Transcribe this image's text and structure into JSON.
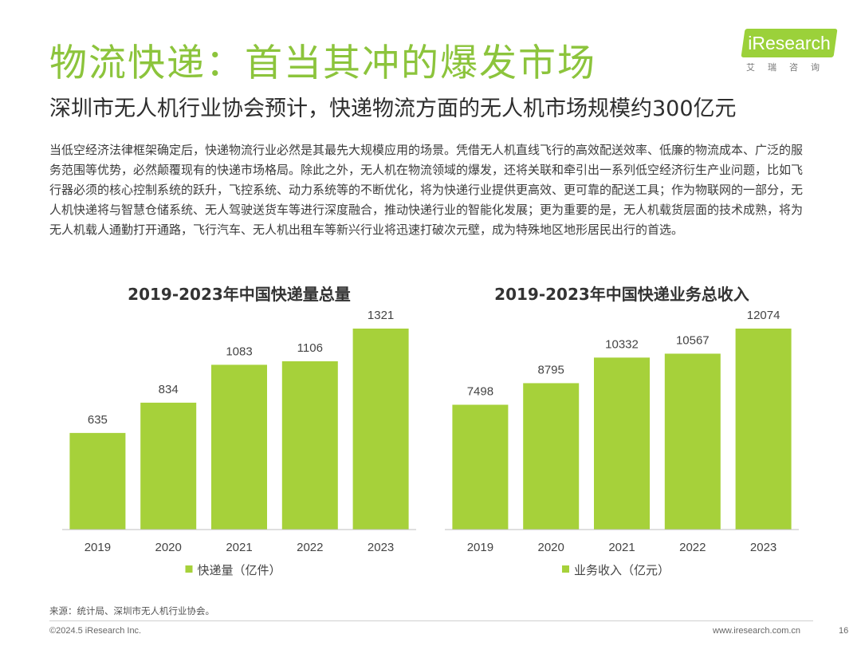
{
  "header": {
    "title": "物流快递：首当其冲的爆发市场",
    "subtitle": "深圳市无人机行业协会预计，快递物流方面的无人机市场规模约300亿元"
  },
  "logo": {
    "brand": "iResearch",
    "sub": "艾瑞咨询"
  },
  "body_text": "当低空经济法律框架确定后，快递物流行业必然是其最先大规模应用的场景。凭借无人机直线飞行的高效配送效率、低廉的物流成本、广泛的服务范围等优势，必然颠覆现有的快递市场格局。除此之外，无人机在物流领域的爆发，还将关联和牵引出一系列低空经济衍生产业问题，比如飞行器必须的核心控制系统的跃升，飞控系统、动力系统等的不断优化，将为快递行业提供更高效、更可靠的配送工具；作为物联网的一部分，无人机快递将与智慧仓储系统、无人驾驶送货车等进行深度融合，推动快递行业的智能化发展；更为重要的是，无人机载货层面的技术成熟，将为无人机载人通勤打开通路，飞行汽车、无人机出租车等新兴行业将迅速打破次元壁，成为特殊地区地形居民出行的首选。",
  "chart_data": [
    {
      "type": "bar",
      "title": "2019-2023年中国快递量总量",
      "categories": [
        "2019",
        "2020",
        "2021",
        "2022",
        "2023"
      ],
      "series": [
        {
          "name": "快递量（亿件）",
          "values": [
            635,
            834,
            1083,
            1106,
            1321
          ]
        }
      ],
      "ylim": [
        0,
        1321
      ],
      "color": "#a6d13a",
      "grid": false,
      "legend": "bottom"
    },
    {
      "type": "bar",
      "title": "2019-2023年中国快递业务总收入",
      "categories": [
        "2019",
        "2020",
        "2021",
        "2022",
        "2023"
      ],
      "series": [
        {
          "name": "业务收入（亿元）",
          "values": [
            7498,
            8795,
            10332,
            10567,
            12074
          ]
        }
      ],
      "ylim": [
        0,
        12074
      ],
      "color": "#a6d13a",
      "grid": false,
      "legend": "bottom"
    }
  ],
  "footer": {
    "source": "来源：统计局、深圳市无人机行业协会。",
    "copyright": "©2024.5 iResearch Inc.",
    "website": "www.iresearch.com.cn",
    "page_number": "16"
  }
}
